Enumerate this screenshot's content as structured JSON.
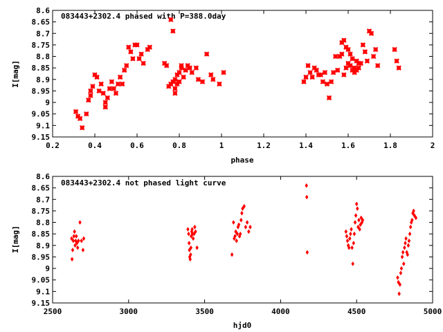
{
  "chart_data": [
    {
      "type": "scatter",
      "title": "083443+2302.4 phased with P=388.0day",
      "xlabel": "phase",
      "ylabel": "I[mag]",
      "xlim": [
        0.2,
        2.0
      ],
      "ylim": [
        9.15,
        8.6
      ],
      "y_inverted": true,
      "xticks": [
        "0.2",
        "0.4",
        "0.6",
        "0.8",
        "1",
        "1.2",
        "1.4",
        "1.6",
        "1.8",
        "2"
      ],
      "yticks": [
        "8.6",
        "8.65",
        "8.7",
        "8.75",
        "8.8",
        "8.85",
        "8.9",
        "8.95",
        "9",
        "9.05",
        "9.1",
        "9.15"
      ],
      "marker": "plus-cross",
      "color": "#ff0000",
      "series": [
        {
          "x": [
            0.31,
            0.32,
            0.34,
            0.33,
            0.36,
            0.37,
            0.38,
            0.38,
            0.39,
            0.4,
            0.41,
            0.42,
            0.43,
            0.44,
            0.45,
            0.45,
            0.46,
            0.47,
            0.48,
            0.49,
            0.5,
            0.51,
            0.52,
            0.53,
            0.54,
            0.55,
            0.56,
            0.57,
            0.58,
            0.59,
            0.6,
            0.61,
            0.62,
            0.63,
            0.65,
            0.66,
            0.73,
            0.74,
            0.75,
            0.76,
            0.76,
            0.77,
            0.77,
            0.78,
            0.78,
            0.78,
            0.79,
            0.79,
            0.8,
            0.8,
            0.81,
            0.81,
            0.82,
            0.83,
            0.84,
            0.85,
            0.86,
            0.88,
            0.89,
            0.91,
            0.93,
            0.95,
            0.96,
            0.99,
            1.01
          ],
          "y": [
            9.04,
            9.06,
            9.11,
            9.07,
            9.05,
            8.99,
            8.95,
            8.97,
            8.93,
            8.88,
            8.89,
            8.95,
            8.92,
            8.96,
            9.0,
            9.02,
            8.98,
            8.94,
            8.91,
            8.94,
            8.96,
            8.92,
            8.89,
            8.92,
            8.86,
            8.84,
            8.76,
            8.78,
            8.81,
            8.75,
            8.75,
            8.81,
            8.79,
            8.83,
            8.77,
            8.76,
            8.83,
            8.84,
            8.93,
            8.92,
            8.64,
            8.69,
            8.91,
            8.94,
            8.9,
            8.96,
            8.92,
            8.88,
            8.91,
            8.87,
            8.84,
            8.85,
            8.89,
            8.86,
            8.84,
            8.85,
            8.87,
            8.85,
            8.9,
            8.91,
            8.79,
            8.88,
            8.9,
            8.92,
            8.87
          ]
        },
        {
          "x": [
            1.39,
            1.4,
            1.41,
            1.42,
            1.43,
            1.44,
            1.45,
            1.46,
            1.47,
            1.48,
            1.49,
            1.5,
            1.51,
            1.52,
            1.53,
            1.54,
            1.55,
            1.56,
            1.57,
            1.57,
            1.58,
            1.58,
            1.59,
            1.59,
            1.6,
            1.6,
            1.61,
            1.61,
            1.62,
            1.62,
            1.63,
            1.63,
            1.64,
            1.64,
            1.65,
            1.65,
            1.66,
            1.67,
            1.68,
            1.69,
            1.7,
            1.71,
            1.72,
            1.73,
            1.74,
            1.82,
            1.83,
            1.84
          ],
          "y": [
            8.91,
            8.89,
            8.84,
            8.87,
            8.89,
            8.85,
            8.86,
            8.88,
            8.88,
            8.91,
            8.87,
            8.92,
            8.98,
            8.91,
            8.87,
            8.8,
            8.86,
            8.8,
            8.74,
            8.79,
            8.73,
            8.88,
            8.76,
            8.85,
            8.77,
            8.83,
            8.84,
            8.79,
            8.86,
            8.81,
            8.85,
            8.87,
            8.82,
            8.86,
            8.85,
            8.83,
            8.83,
            8.75,
            8.78,
            8.82,
            8.69,
            8.7,
            8.8,
            8.77,
            8.84,
            8.77,
            8.82,
            8.85
          ]
        }
      ]
    },
    {
      "type": "scatter",
      "title": "083443+2302.4 not phased light curve",
      "xlabel": "hjd0",
      "ylabel": "I[mag]",
      "xlim": [
        2500,
        5000
      ],
      "ylim": [
        9.15,
        8.6
      ],
      "y_inverted": true,
      "xticks": [
        "2500",
        "3000",
        "3500",
        "4000",
        "4500",
        "5000"
      ],
      "yticks": [
        "8.6",
        "8.65",
        "8.7",
        "8.75",
        "8.8",
        "8.85",
        "8.9",
        "8.95",
        "9",
        "9.05",
        "9.1",
        "9.15"
      ],
      "marker": "diamond",
      "color": "#ff0000",
      "series": [
        {
          "x": [
            2625,
            2628,
            2632,
            2636,
            2640,
            2644,
            2648,
            2652,
            2656,
            2660,
            2665,
            2670,
            2680,
            2690,
            2700,
            2705,
            3390,
            3395,
            3398,
            3400,
            3402,
            3405,
            3408,
            3410,
            3412,
            3415,
            3418,
            3420,
            3425,
            3430,
            3435,
            3440,
            3450,
            3680,
            3690,
            3695,
            3700,
            3705,
            3710,
            3715,
            3720,
            3725,
            3730,
            3735,
            3740,
            3745,
            3750,
            3760,
            3770,
            3780,
            3790,
            3800,
            4170,
            4172,
            4175,
            4430,
            4435,
            4440,
            4445,
            4450,
            4455,
            4460,
            4465,
            4470,
            4475,
            4480,
            4485,
            4490,
            4495,
            4500,
            4505,
            4510,
            4515,
            4520,
            4525,
            4530,
            4535,
            4540,
            4770,
            4775,
            4780,
            4785,
            4790,
            4795,
            4800,
            4805,
            4810,
            4815,
            4820,
            4825,
            4830,
            4835,
            4840,
            4845,
            4850,
            4855,
            4860,
            4865,
            4870,
            4875,
            4880,
            4890
          ],
          "y": [
            8.87,
            8.96,
            8.92,
            8.88,
            8.86,
            8.84,
            8.9,
            8.88,
            8.86,
            8.89,
            8.91,
            8.88,
            8.8,
            8.88,
            8.92,
            8.87,
            8.83,
            8.85,
            8.89,
            8.92,
            8.95,
            8.96,
            8.94,
            8.91,
            8.86,
            8.84,
            8.83,
            8.85,
            8.87,
            8.85,
            8.82,
            8.84,
            8.91,
            8.94,
            8.8,
            8.87,
            8.86,
            8.84,
            8.88,
            8.85,
            8.82,
            8.81,
            8.86,
            8.85,
            8.79,
            8.76,
            8.74,
            8.73,
            8.82,
            8.8,
            8.84,
            8.82,
            8.64,
            8.69,
            8.93,
            8.84,
            8.86,
            8.88,
            8.9,
            8.91,
            8.87,
            8.85,
            8.83,
            8.91,
            8.98,
            8.89,
            8.85,
            8.8,
            8.77,
            8.72,
            8.74,
            8.82,
            8.79,
            8.83,
            8.81,
            8.78,
            8.8,
            8.79,
            9.04,
            9.06,
            9.11,
            9.07,
            9.02,
            9.0,
            8.95,
            8.93,
            8.98,
            8.91,
            8.89,
            8.87,
            8.93,
            8.94,
            8.9,
            8.88,
            8.85,
            8.82,
            8.8,
            8.79,
            8.76,
            8.75,
            8.77,
            8.78
          ]
        }
      ]
    }
  ]
}
